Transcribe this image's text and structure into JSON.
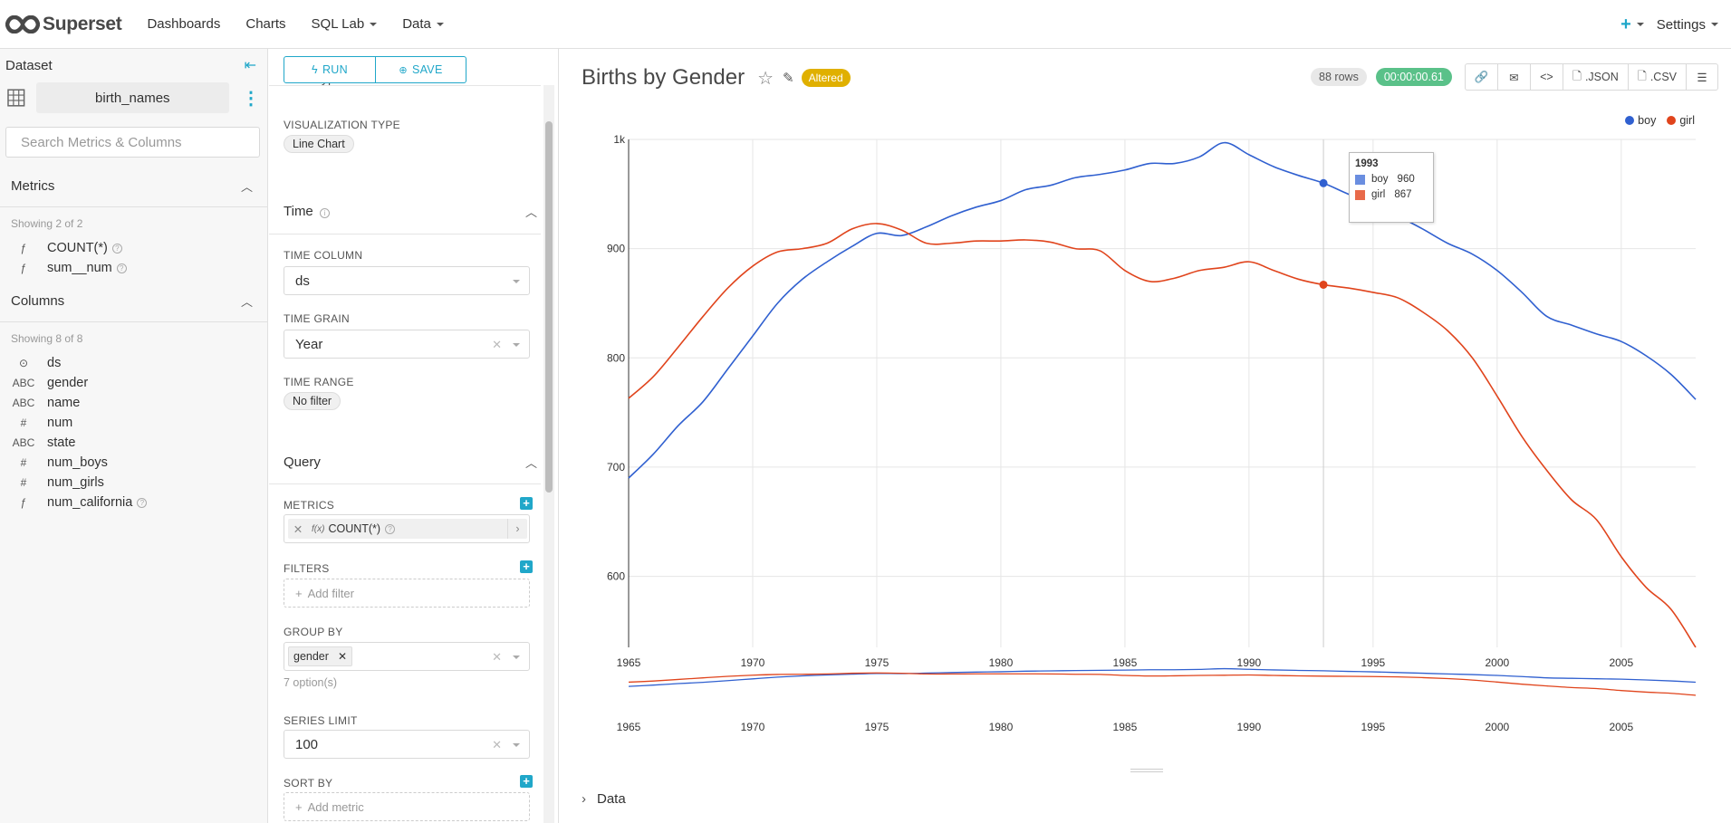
{
  "nav": {
    "brand": "Superset",
    "items": [
      "Dashboards",
      "Charts",
      "SQL Lab",
      "Data"
    ],
    "settings": "Settings"
  },
  "dataset_panel": {
    "header": "Dataset",
    "dataset_name": "birth_names",
    "search_placeholder": "Search Metrics & Columns",
    "metrics_title": "Metrics",
    "metrics_showing": "Showing 2 of 2",
    "metrics": [
      {
        "type": "ƒ",
        "name": "COUNT(*)"
      },
      {
        "type": "ƒ",
        "name": "sum__num"
      }
    ],
    "columns_title": "Columns",
    "columns_showing": "Showing 8 of 8",
    "columns": [
      {
        "type": "⊙",
        "name": "ds"
      },
      {
        "type": "ABC",
        "name": "gender"
      },
      {
        "type": "ABC",
        "name": "name"
      },
      {
        "type": "#",
        "name": "num"
      },
      {
        "type": "ABC",
        "name": "state"
      },
      {
        "type": "#",
        "name": "num_boys"
      },
      {
        "type": "#",
        "name": "num_girls"
      },
      {
        "type": "ƒ",
        "name": "num_california"
      }
    ]
  },
  "control_panel": {
    "run": "RUN",
    "save": "SAVE",
    "chart_type_cut": "Chart type",
    "viz_type_label": "VISUALIZATION TYPE",
    "viz_type": "Line Chart",
    "time_section": "Time",
    "time_column_label": "TIME COLUMN",
    "time_column": "ds",
    "time_grain_label": "TIME GRAIN",
    "time_grain": "Year",
    "time_range_label": "TIME RANGE",
    "time_range": "No filter",
    "query_section": "Query",
    "metrics_label": "METRICS",
    "metric_value": "COUNT(*)",
    "metric_fx": "f(x)",
    "filters_label": "FILTERS",
    "add_filter": "Add filter",
    "group_by_label": "GROUP BY",
    "group_by_tag": "gender",
    "group_by_hint": "7 option(s)",
    "series_limit_label": "SERIES LIMIT",
    "series_limit": "100",
    "sort_by_label": "SORT BY",
    "add_metric": "Add metric"
  },
  "chart_header": {
    "title": "Births by Gender",
    "altered": "Altered",
    "rows": "88 rows",
    "duration": "00:00:00.61",
    "json": ".JSON",
    "csv": ".CSV",
    "data_toggle": "Data"
  },
  "colors": {
    "accent": "#20a7c9",
    "boy": "#3060d0",
    "girl": "#e0441c",
    "altered": "#e0b000",
    "success": "#5ac189"
  },
  "chart_data": {
    "type": "line",
    "title": "Births by Gender",
    "x": [
      1965,
      1966,
      1967,
      1968,
      1969,
      1970,
      1971,
      1972,
      1973,
      1974,
      1975,
      1976,
      1977,
      1978,
      1979,
      1980,
      1981,
      1982,
      1983,
      1984,
      1985,
      1986,
      1987,
      1988,
      1989,
      1990,
      1991,
      1992,
      1993,
      1994,
      1995,
      1996,
      1997,
      1998,
      1999,
      2000,
      2001,
      2002,
      2003,
      2004,
      2005,
      2006,
      2007,
      2008
    ],
    "series": [
      {
        "name": "boy",
        "color": "#3060d0",
        "values": [
          690,
          712,
          738,
          760,
          790,
          820,
          850,
          872,
          888,
          902,
          914,
          912,
          920,
          930,
          938,
          944,
          954,
          958,
          965,
          968,
          972,
          978,
          978,
          984,
          997,
          986,
          975,
          967,
          960,
          950,
          942,
          930,
          918,
          905,
          895,
          880,
          860,
          838,
          830,
          822,
          815,
          802,
          785,
          762
        ]
      },
      {
        "name": "girl",
        "color": "#e0441c",
        "values": [
          763,
          783,
          810,
          838,
          864,
          884,
          897,
          900,
          905,
          918,
          923,
          917,
          905,
          905,
          907,
          907,
          908,
          906,
          900,
          898,
          880,
          870,
          873,
          880,
          883,
          888,
          880,
          872,
          867,
          864,
          860,
          855,
          842,
          825,
          800,
          765,
          728,
          697,
          670,
          652,
          618,
          590,
          570,
          535
        ]
      }
    ],
    "xlim": [
      1965,
      2008
    ],
    "ylim": [
      535,
      1000
    ],
    "yticks": [
      600,
      700,
      800,
      900,
      1000
    ],
    "ytick_labels": [
      "600",
      "700",
      "800",
      "900",
      "1k"
    ],
    "xticks": [
      1965,
      1970,
      1975,
      1980,
      1985,
      1990,
      1995,
      2000,
      2005
    ],
    "legend": [
      "boy",
      "girl"
    ],
    "legend_position": "top-right",
    "grid": true,
    "tooltip": {
      "year": "1993",
      "boy": "960",
      "girl": "867"
    }
  }
}
